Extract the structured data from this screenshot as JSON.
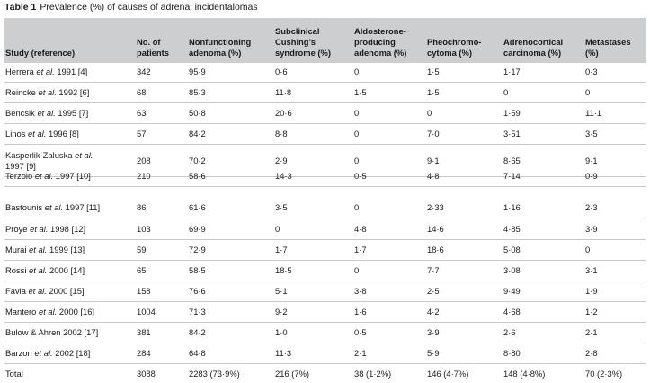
{
  "table": {
    "label": "Table 1",
    "title": "Prevalence (%) of causes of adrenal incidentalomas",
    "headers": [
      [
        "Study (reference)"
      ],
      [
        "No. of",
        "patients"
      ],
      [
        "Nonfunctioning",
        "adenoma (%)"
      ],
      [
        "Subclinical",
        "Cushing’s",
        "syndrome (%)"
      ],
      [
        "Aldosterone-",
        "producing",
        "adenoma (%)"
      ],
      [
        "Pheochromo-",
        "cytoma (%)"
      ],
      [
        "Adrenocortical",
        "carcinoma (%)"
      ],
      [
        "Metastases",
        "(%)"
      ]
    ],
    "rows": [
      {
        "study": [
          "Herrera et al. 1991 [4]"
        ],
        "values": [
          "342",
          "95·9",
          "0·6",
          "0",
          "1·5",
          "1·17",
          "0·3"
        ]
      },
      {
        "study": [
          "Reincke et al. 1992 [6]"
        ],
        "values": [
          "68",
          "85·3",
          "11·8",
          "1·5",
          "1·5",
          "0",
          "0"
        ]
      },
      {
        "study": [
          "Bencsik et al. 1995 [7]"
        ],
        "values": [
          "63",
          "50·8",
          "20·6",
          "0",
          "0",
          "1·59",
          "11·1"
        ]
      },
      {
        "study": [
          "Linos et al. 1996 [8]"
        ],
        "values": [
          "57",
          "84·2",
          "8·8",
          "0",
          "7·0",
          "3·51",
          "3·5"
        ]
      },
      {
        "study": [
          "Kasperlik-Zaluska et al.",
          "1997 [9]"
        ],
        "values": [
          "208",
          "70·2",
          "2·9",
          "0",
          "9·1",
          "8·65",
          "9·1"
        ]
      },
      {
        "study": [
          "Terzolo et al. 1997 [10]"
        ],
        "values": [
          "210",
          "58·6",
          "14·3",
          "0·5",
          "4·8",
          "7·14",
          "0·9"
        ]
      },
      {
        "study": [
          "Bastounis et al. 1997 [11]"
        ],
        "values": [
          "86",
          "61·6",
          "3·5",
          "0",
          "2·33",
          "1·16",
          "2·3"
        ]
      },
      {
        "study": [
          "Proye et al. 1998 [12]"
        ],
        "values": [
          "103",
          "69·9",
          "0",
          "4·8",
          "14·6",
          "4·85",
          "3·9"
        ]
      },
      {
        "study": [
          "Murai et al. 1999 [13]"
        ],
        "values": [
          "59",
          "72·9",
          "1·7",
          "1·7",
          "18·6",
          "5·08",
          "0"
        ]
      },
      {
        "study": [
          "Rossi et al. 2000 [14]"
        ],
        "values": [
          "65",
          "58·5",
          "18·5",
          "0",
          "7·7",
          "3·08",
          "3·1"
        ]
      },
      {
        "study": [
          "Favia et al. 2000 [15]"
        ],
        "values": [
          "158",
          "76·6",
          "5·1",
          "3·8",
          "2·5",
          "9·49",
          "1·9"
        ]
      },
      {
        "study": [
          "Mantero et al. 2000 [16]"
        ],
        "values": [
          "1004",
          "71·3",
          "9·2",
          "1·6",
          "4·2",
          "4·68",
          "1·2"
        ]
      },
      {
        "study": [
          "Bulow & Ahren 2002 [17]"
        ],
        "values": [
          "381",
          "84·2",
          "1·0",
          "0·5",
          "3·9",
          "2·6",
          "2·1"
        ]
      },
      {
        "study": [
          "Barzon et al. 2002 [18]"
        ],
        "values": [
          "284",
          "64·8",
          "11·3",
          "2·1",
          "5·9",
          "8·80",
          "2·8"
        ]
      },
      {
        "study": [
          "Total"
        ],
        "values": [
          "3088",
          "2283 (73·9%)",
          "216 (7%)",
          "38 (1·2%)",
          "146 (4·7%)",
          "148 (4·8%)",
          "70 (2·3%)"
        ]
      }
    ]
  }
}
